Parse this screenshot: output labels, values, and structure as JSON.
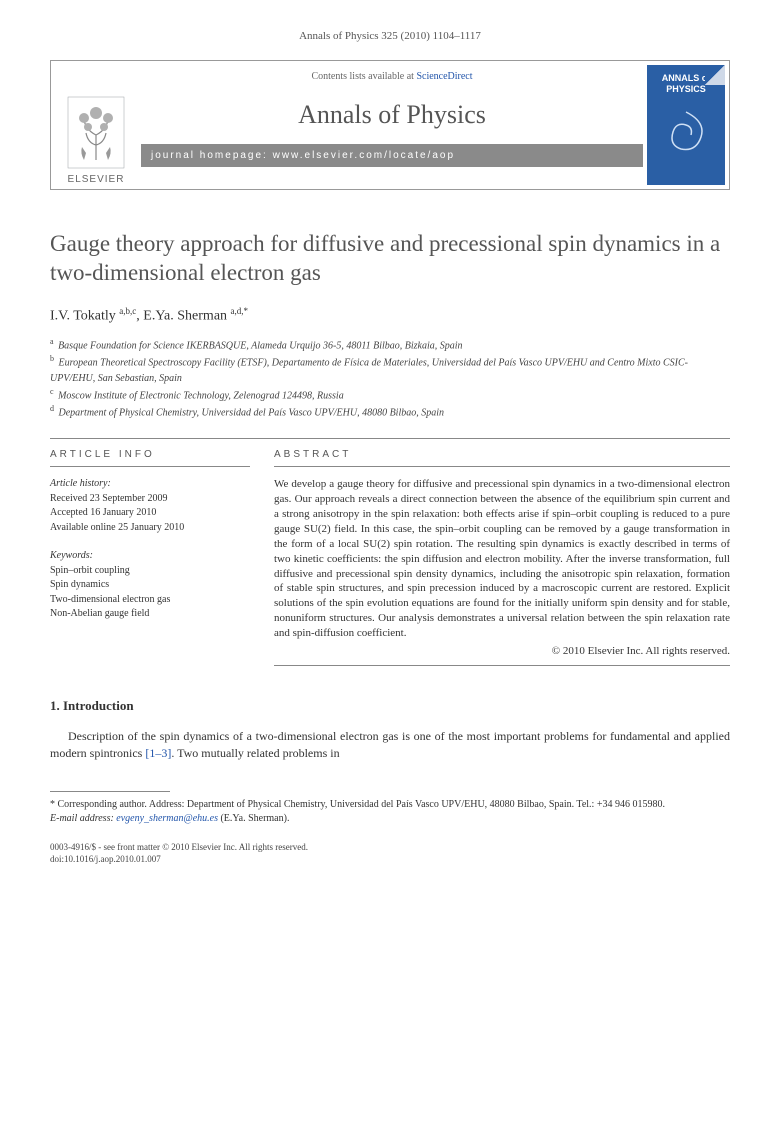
{
  "running_head": "Annals of Physics 325 (2010) 1104–1117",
  "header": {
    "contents_prefix": "Contents lists available at ",
    "contents_link": "ScienceDirect",
    "journal_title": "Annals of Physics",
    "homepage_label": "journal homepage: www.elsevier.com/locate/aop",
    "publisher": "ELSEVIER",
    "cover_title": "ANNALS of PHYSICS"
  },
  "article": {
    "title": "Gauge theory approach for diffusive and precessional spin dynamics in a two-dimensional electron gas",
    "authors_html": "I.V. Tokatly <sup>a,b,c</sup>, E.Ya. Sherman <sup>a,d,*</sup>",
    "affiliations": [
      {
        "sup": "a",
        "text": "Basque Foundation for Science IKERBASQUE, Alameda Urquijo 36-5, 48011 Bilbao, Bizkaia, Spain"
      },
      {
        "sup": "b",
        "text": "European Theoretical Spectroscopy Facility (ETSF), Departamento de Física de Materiales, Universidad del País Vasco UPV/EHU and Centro Mixto CSIC-UPV/EHU, San Sebastian, Spain"
      },
      {
        "sup": "c",
        "text": "Moscow Institute of Electronic Technology, Zelenograd 124498, Russia"
      },
      {
        "sup": "d",
        "text": "Department of Physical Chemistry, Universidad del País Vasco UPV/EHU, 48080 Bilbao, Spain"
      }
    ]
  },
  "info": {
    "head": "ARTICLE INFO",
    "history_label": "Article history:",
    "history": [
      "Received 23 September 2009",
      "Accepted 16 January 2010",
      "Available online 25 January 2010"
    ],
    "keywords_label": "Keywords:",
    "keywords": [
      "Spin–orbit coupling",
      "Spin dynamics",
      "Two-dimensional electron gas",
      "Non-Abelian gauge field"
    ]
  },
  "abstract": {
    "head": "ABSTRACT",
    "text": "We develop a gauge theory for diffusive and precessional spin dynamics in a two-dimensional electron gas. Our approach reveals a direct connection between the absence of the equilibrium spin current and a strong anisotropy in the spin relaxation: both effects arise if spin–orbit coupling is reduced to a pure gauge SU(2) field. In this case, the spin–orbit coupling can be removed by a gauge transformation in the form of a local SU(2) spin rotation. The resulting spin dynamics is exactly described in terms of two kinetic coefficients: the spin diffusion and electron mobility. After the inverse transformation, full diffusive and precessional spin density dynamics, including the anisotropic spin relaxation, formation of stable spin structures, and spin precession induced by a macroscopic current are restored. Explicit solutions of the spin evolution equations are found for the initially uniform spin density and for stable, nonuniform structures. Our analysis demonstrates a universal relation between the spin relaxation rate and spin-diffusion coefficient.",
    "copyright": "© 2010 Elsevier Inc. All rights reserved."
  },
  "section1": {
    "head": "1. Introduction",
    "para": "Description of the spin dynamics of a two-dimensional electron gas is one of the most important problems for fundamental and applied modern spintronics [1–3]. Two mutually related problems in"
  },
  "footnotes": {
    "corr": "* Corresponding author. Address: Department of Physical Chemistry, Universidad del País Vasco UPV/EHU, 48080 Bilbao, Spain. Tel.: +34 946 015980.",
    "email_label": "E-mail address:",
    "email": "evgeny_sherman@ehu.es",
    "email_owner": "(E.Ya. Sherman)."
  },
  "footer": {
    "line1": "0003-4916/$ - see front matter © 2010 Elsevier Inc. All rights reserved.",
    "line2": "doi:10.1016/j.aop.2010.01.007"
  },
  "colors": {
    "text": "#333333",
    "muted": "#555555",
    "link": "#2255aa",
    "bar_bg": "#8a8a8a",
    "cover_bg": "#2a5fa5",
    "rule": "#888888"
  }
}
